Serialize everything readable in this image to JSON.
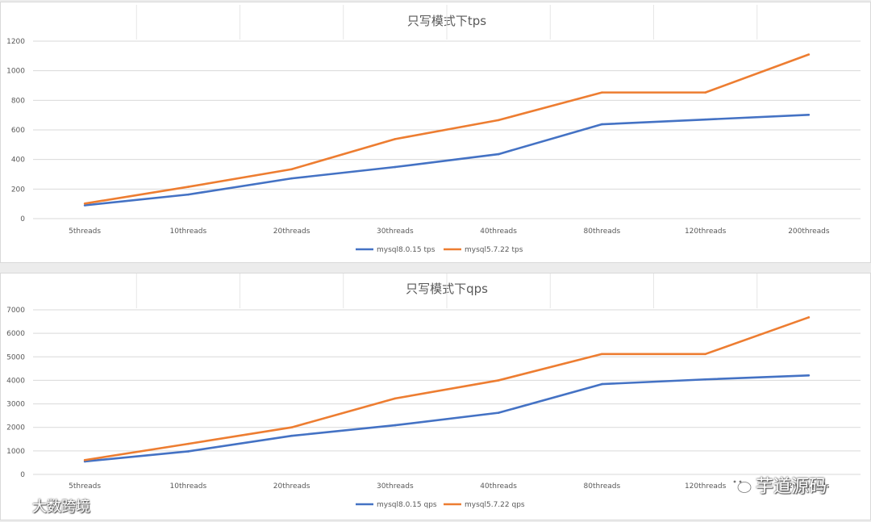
{
  "colors": {
    "series1": "#4472C4",
    "series2": "#ED7D31",
    "grid": "#d9d9d9"
  },
  "chart_data": [
    {
      "type": "line",
      "title": "只写模式下tps",
      "categories": [
        "5threads",
        "10threads",
        "20threads",
        "30threads",
        "40threads",
        "80threads",
        "120threads",
        "200threads"
      ],
      "ylim": [
        0,
        1200
      ],
      "yticks": [
        0,
        200,
        400,
        600,
        800,
        1000,
        1200
      ],
      "grid": true,
      "legend": "bottom",
      "series": [
        {
          "name": "mysql8.0.15 tps",
          "values": [
            90,
            163,
            272,
            349,
            436,
            638,
            670,
            702
          ]
        },
        {
          "name": "mysql5.7.22 tps",
          "values": [
            102,
            215,
            334,
            538,
            666,
            853,
            853,
            1110
          ]
        }
      ]
    },
    {
      "type": "line",
      "title": "只写模式下qps",
      "categories": [
        "5threads",
        "10threads",
        "20threads",
        "30threads",
        "40threads",
        "80threads",
        "120threads",
        "200threads"
      ],
      "ylim": [
        0,
        7000
      ],
      "yticks": [
        0,
        1000,
        2000,
        3000,
        4000,
        5000,
        6000,
        7000
      ],
      "grid": true,
      "legend": "bottom",
      "series": [
        {
          "name": "mysql8.0.15 qps",
          "values": [
            550,
            980,
            1640,
            2090,
            2620,
            3840,
            4040,
            4210
          ]
        },
        {
          "name": "mysql5.7.22 qps",
          "values": [
            610,
            1300,
            2000,
            3230,
            4000,
            5120,
            5120,
            6680
          ]
        }
      ]
    }
  ],
  "watermarks": {
    "left": "大数跨境",
    "right": "芋道源码"
  }
}
